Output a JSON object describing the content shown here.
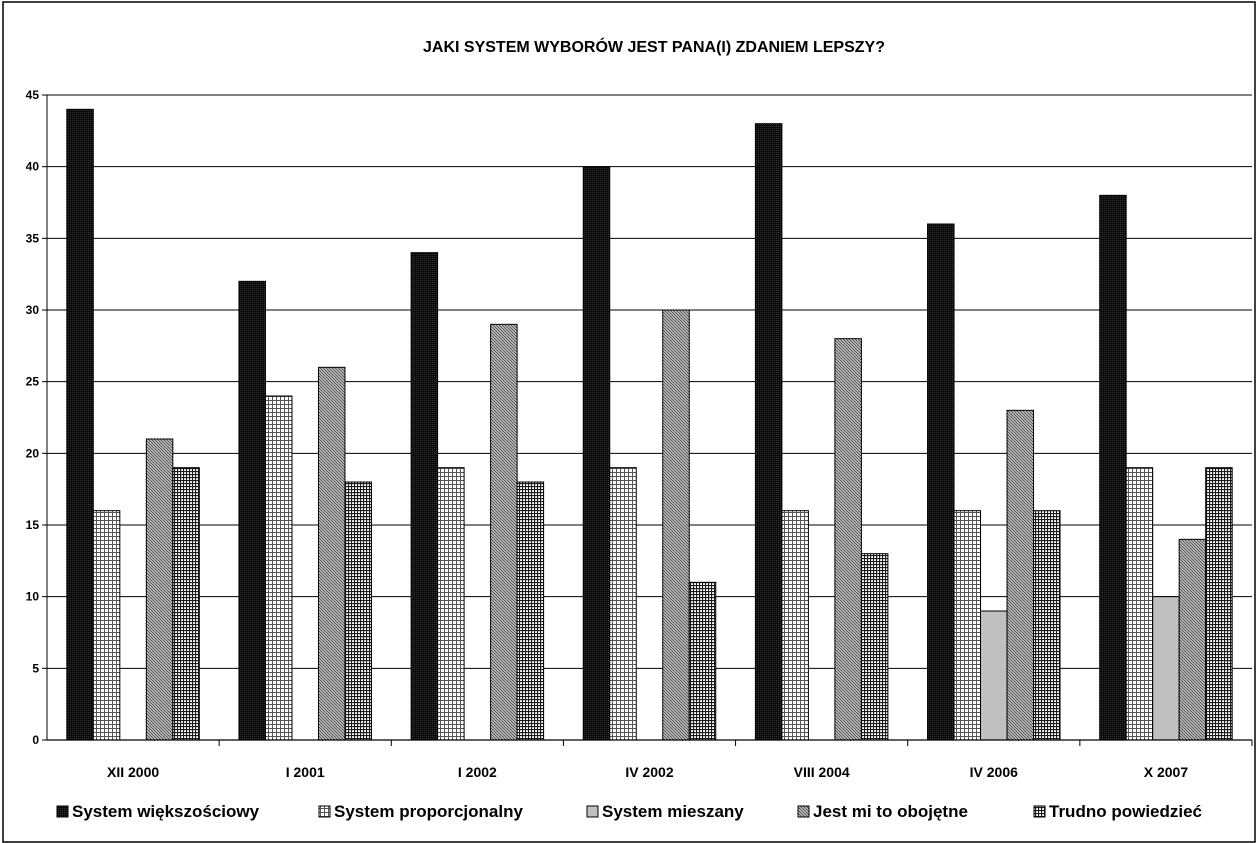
{
  "chart_data": {
    "type": "bar",
    "title": "JAKI SYSTEM WYBORÓW JEST PANA(I) ZDANIEM LEPSZY?",
    "xlabel": "",
    "ylabel": "",
    "ylim": [
      0,
      45
    ],
    "yticks": [
      0,
      5,
      10,
      15,
      20,
      25,
      30,
      35,
      40,
      45
    ],
    "grid": true,
    "legend_position": "bottom",
    "categories": [
      "XII 2000",
      "I 2001",
      "I 2002",
      "IV 2002",
      "VIII 2004",
      "IV 2006",
      "X 2007"
    ],
    "series": [
      {
        "name": "System większościowy",
        "pattern": "dark",
        "values": [
          44,
          32,
          34,
          40,
          43,
          36,
          38
        ]
      },
      {
        "name": "System proporcjonalny",
        "pattern": "grid-light",
        "values": [
          16,
          24,
          19,
          19,
          16,
          16,
          19
        ]
      },
      {
        "name": "System mieszany",
        "pattern": "solid-gray",
        "values": [
          0,
          0,
          0,
          0,
          0,
          9,
          10
        ]
      },
      {
        "name": "Jest mi to obojętne",
        "pattern": "diagonal",
        "values": [
          21,
          26,
          29,
          30,
          28,
          23,
          14
        ]
      },
      {
        "name": "Trudno powiedzieć",
        "pattern": "grid-dark",
        "values": [
          19,
          18,
          18,
          11,
          13,
          16,
          19
        ]
      }
    ]
  }
}
